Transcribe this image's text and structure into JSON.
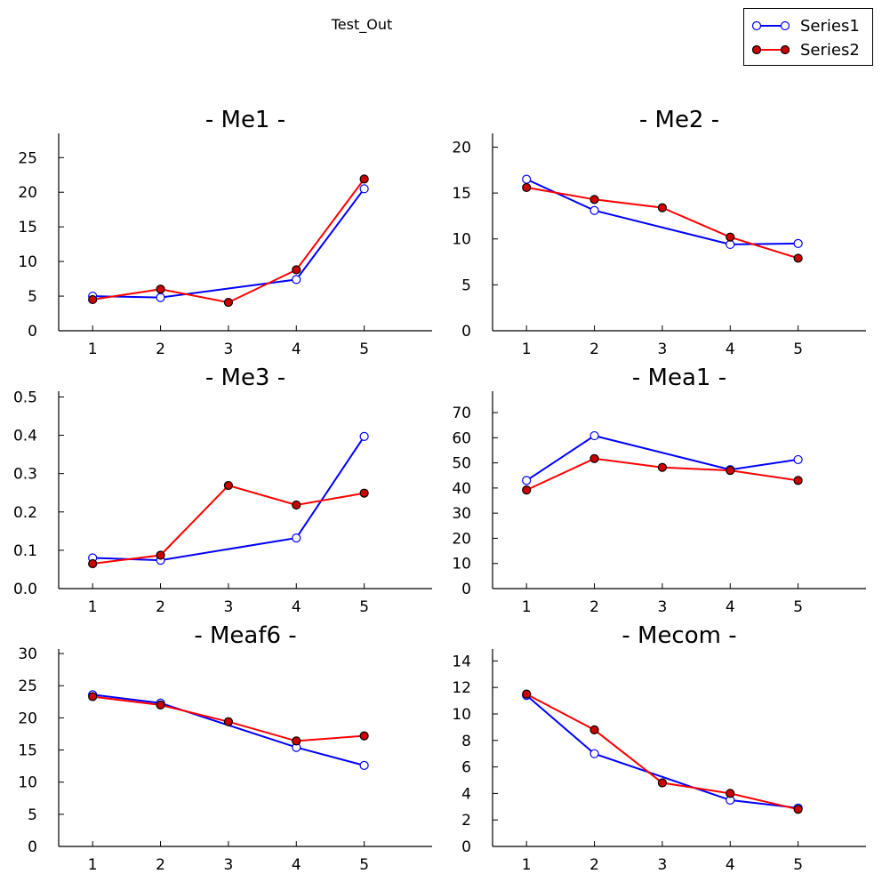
{
  "suptitle": "Test_Out",
  "legend": [
    {
      "label": "Series1",
      "color": "#0000ff",
      "fill": "#ffffff"
    },
    {
      "label": "Series2",
      "color": "#ff0000",
      "fill": "#cc0000"
    }
  ],
  "chart_data": [
    {
      "type": "line",
      "title": "- Me1 -",
      "x": [
        1,
        2,
        3,
        4,
        5
      ],
      "xticks": [
        "1",
        "2",
        "3",
        "4",
        "5"
      ],
      "xlim": [
        0.5,
        6
      ],
      "yticks": [
        "0",
        "5",
        "10",
        "15",
        "20",
        "25"
      ],
      "ylim": [
        0,
        28.5
      ],
      "series": [
        {
          "name": "Series1",
          "x": [
            1,
            2,
            4,
            5
          ],
          "values": [
            5.0,
            4.8,
            7.4,
            20.5
          ]
        },
        {
          "name": "Series2",
          "x": [
            1,
            2,
            3,
            4,
            5
          ],
          "values": [
            4.5,
            6.0,
            4.1,
            8.8,
            21.9
          ]
        }
      ]
    },
    {
      "type": "line",
      "title": "- Me2 -",
      "x": [
        1,
        2,
        3,
        4,
        5
      ],
      "xticks": [
        "1",
        "2",
        "3",
        "4",
        "5"
      ],
      "xlim": [
        0.5,
        6
      ],
      "yticks": [
        "0",
        "5",
        "10",
        "15",
        "20"
      ],
      "ylim": [
        0,
        21.5
      ],
      "series": [
        {
          "name": "Series1",
          "x": [
            1,
            2,
            4,
            5
          ],
          "values": [
            16.5,
            13.1,
            9.4,
            9.5
          ]
        },
        {
          "name": "Series2",
          "x": [
            1,
            2,
            3,
            4,
            5
          ],
          "values": [
            15.6,
            14.3,
            13.4,
            10.2,
            7.9
          ]
        }
      ]
    },
    {
      "type": "line",
      "title": "- Me3 -",
      "x": [
        1,
        2,
        3,
        4,
        5
      ],
      "xticks": [
        "1",
        "2",
        "3",
        "4",
        "5"
      ],
      "xlim": [
        0.5,
        6
      ],
      "yticks": [
        "0.0",
        "0.1",
        "0.2",
        "0.3",
        "0.4",
        "0.5"
      ],
      "ylim": [
        0,
        0.515
      ],
      "series": [
        {
          "name": "Series1",
          "x": [
            1,
            2,
            4,
            5
          ],
          "values": [
            0.08,
            0.074,
            0.132,
            0.397
          ]
        },
        {
          "name": "Series2",
          "x": [
            1,
            2,
            3,
            4,
            5
          ],
          "values": [
            0.065,
            0.087,
            0.269,
            0.218,
            0.249
          ]
        }
      ]
    },
    {
      "type": "line",
      "title": "- Mea1 -",
      "x": [
        1,
        2,
        3,
        4,
        5
      ],
      "xticks": [
        "1",
        "2",
        "3",
        "4",
        "5"
      ],
      "xlim": [
        0.5,
        6
      ],
      "yticks": [
        "0",
        "10",
        "20",
        "30",
        "40",
        "50",
        "60",
        "70"
      ],
      "ylim": [
        0,
        78.5
      ],
      "series": [
        {
          "name": "Series1",
          "x": [
            1,
            2,
            4,
            5
          ],
          "values": [
            43.0,
            60.8,
            47.3,
            51.3
          ]
        },
        {
          "name": "Series2",
          "x": [
            1,
            2,
            3,
            4,
            5
          ],
          "values": [
            39.2,
            51.7,
            48.2,
            47.0,
            43.0
          ]
        }
      ]
    },
    {
      "type": "line",
      "title": "- Meaf6 -",
      "x": [
        1,
        2,
        3,
        4,
        5
      ],
      "xticks": [
        "1",
        "2",
        "3",
        "4",
        "5"
      ],
      "xlim": [
        0.5,
        6
      ],
      "yticks": [
        "0",
        "5",
        "10",
        "15",
        "20",
        "25",
        "30"
      ],
      "ylim": [
        0,
        30.7
      ],
      "series": [
        {
          "name": "Series1",
          "x": [
            1,
            2,
            4,
            5
          ],
          "values": [
            23.6,
            22.3,
            15.4,
            12.6
          ]
        },
        {
          "name": "Series2",
          "x": [
            1,
            2,
            3,
            4,
            5
          ],
          "values": [
            23.3,
            22.0,
            19.4,
            16.4,
            17.2
          ]
        }
      ]
    },
    {
      "type": "line",
      "title": "- Mecom -",
      "x": [
        1,
        2,
        3,
        4,
        5
      ],
      "xticks": [
        "1",
        "2",
        "3",
        "4",
        "5"
      ],
      "xlim": [
        0.5,
        6
      ],
      "yticks": [
        "0",
        "2",
        "4",
        "6",
        "8",
        "10",
        "12",
        "14"
      ],
      "ylim": [
        0,
        14.9
      ],
      "series": [
        {
          "name": "Series1",
          "x": [
            1,
            2,
            4,
            5
          ],
          "values": [
            11.4,
            7.0,
            3.5,
            2.9
          ]
        },
        {
          "name": "Series2",
          "x": [
            1,
            2,
            3,
            4,
            5
          ],
          "values": [
            11.5,
            8.8,
            4.8,
            4.0,
            2.8
          ]
        }
      ]
    }
  ]
}
